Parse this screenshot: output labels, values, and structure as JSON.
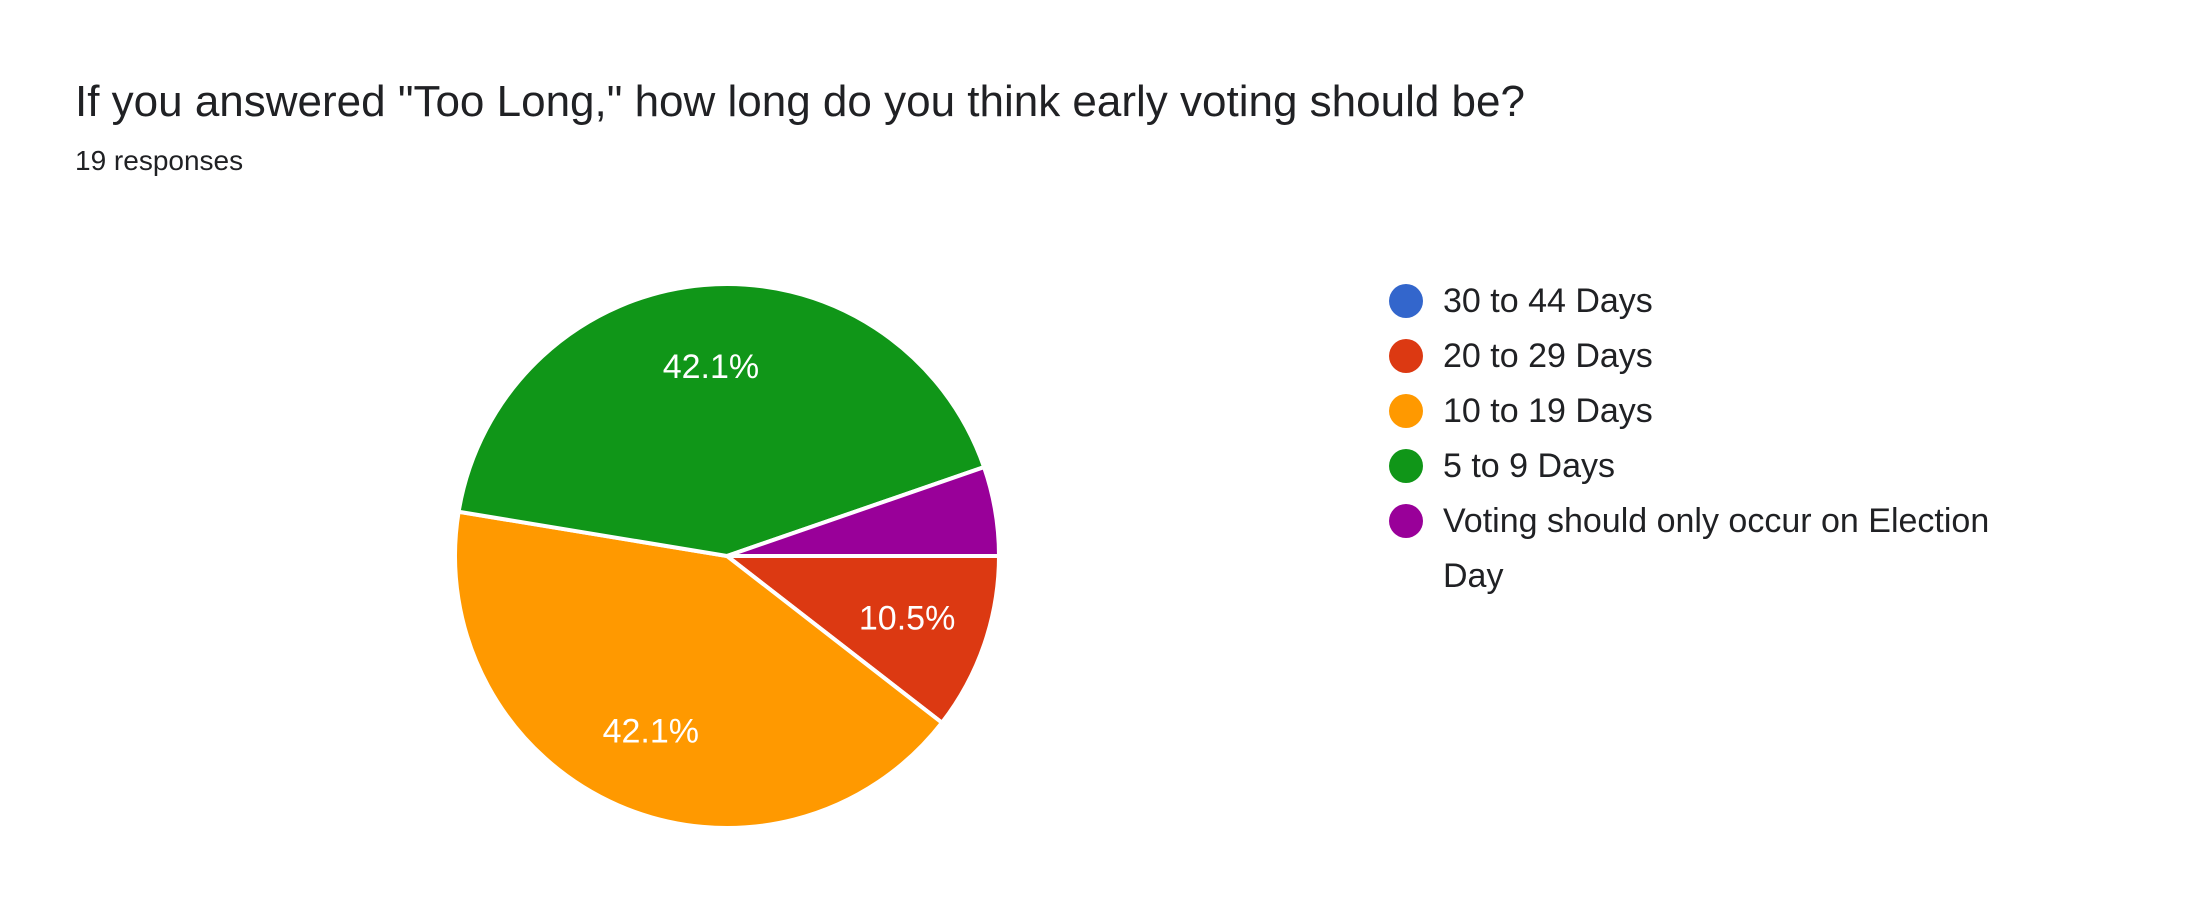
{
  "chart_data": {
    "type": "pie",
    "title": "If you answered \"Too Long,\" how long do you think early voting should be?",
    "subtitle": "19 responses",
    "legend_position": "right",
    "start_angle": "3-oclock-clockwise",
    "background_color": "#ffffff",
    "text_color": "#202124",
    "slice_label_color": "#ffffff",
    "label_min_pct_shown": 7,
    "slices": [
      {
        "label": "30 to 44 Days",
        "pct": 0,
        "pct_label": "",
        "color": "#3366CC"
      },
      {
        "label": "20 to 29 Days",
        "pct": 10.5,
        "pct_label": "10.5%",
        "color": "#DC3912"
      },
      {
        "label": "10 to 19 Days",
        "pct": 42.1,
        "pct_label": "42.1%",
        "color": "#FF9900"
      },
      {
        "label": "5 to 9 Days",
        "pct": 42.1,
        "pct_label": "42.1%",
        "color": "#109618"
      },
      {
        "label": "Voting should only occur on Election Day",
        "pct": 5.3,
        "pct_label": "",
        "color": "#990099"
      }
    ]
  }
}
